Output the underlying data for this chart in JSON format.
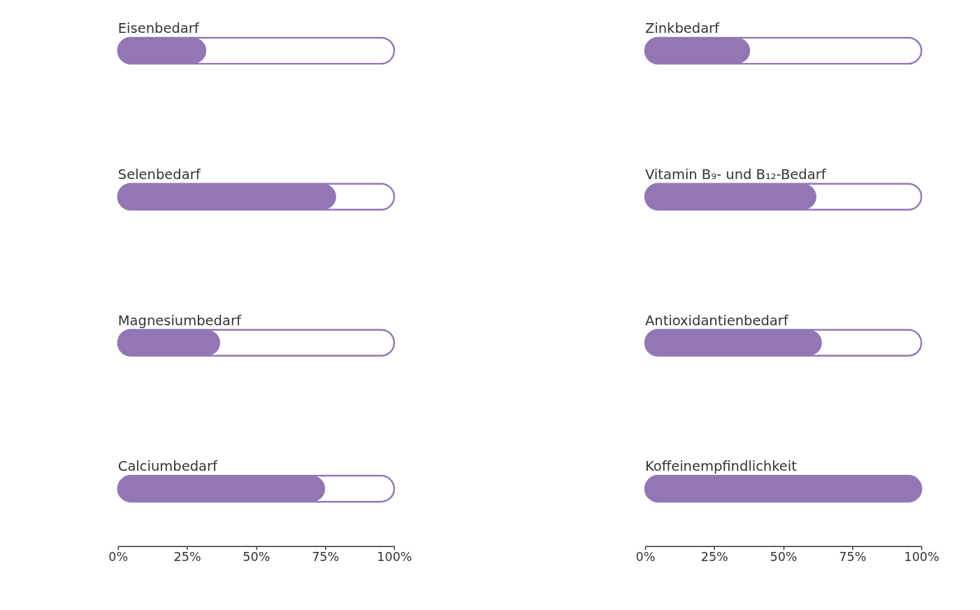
{
  "chart_data": [
    {
      "type": "bar",
      "orientation": "horizontal",
      "categories": [
        "Eisenbedarf",
        "Selenbedarf",
        "Magnesiumbedarf",
        "Calciumbedarf"
      ],
      "values": [
        32,
        79,
        37,
        75
      ],
      "color": "#9377b5",
      "xlim": [
        0,
        100
      ],
      "xticks": [
        {
          "value": 0,
          "label": "0%"
        },
        {
          "value": 25,
          "label": "25%"
        },
        {
          "value": 50,
          "label": "50%"
        },
        {
          "value": 75,
          "label": "75%"
        },
        {
          "value": 100,
          "label": "100%"
        }
      ],
      "tick_labels": "x",
      "grid": false
    },
    {
      "type": "bar",
      "orientation": "horizontal",
      "categories": [
        "Zinkbedarf",
        "Vitamin B₉- und B₁₂-Bedarf",
        "Antioxidantienbedarf",
        "Koffeinempfindlichkeit"
      ],
      "values": [
        38,
        62,
        64,
        100
      ],
      "color": "#9377b5",
      "xlim": [
        0,
        100
      ],
      "xticks": [
        {
          "value": 0,
          "label": "0%"
        },
        {
          "value": 25,
          "label": "25%"
        },
        {
          "value": 50,
          "label": "50%"
        },
        {
          "value": 75,
          "label": "75%"
        },
        {
          "value": 100,
          "label": "100%"
        }
      ],
      "tick_labels": "x",
      "grid": false
    }
  ]
}
